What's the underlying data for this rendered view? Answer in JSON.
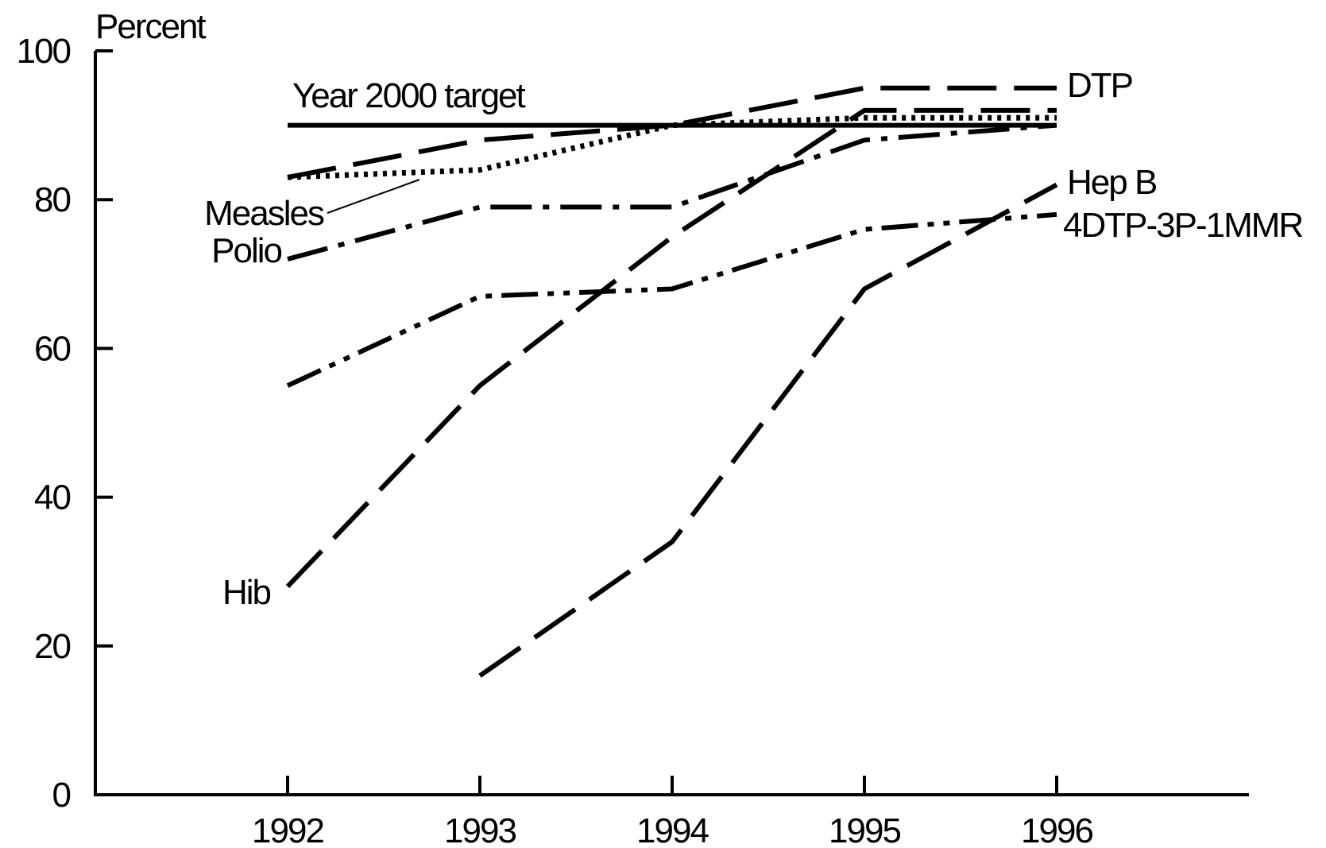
{
  "chart_data": {
    "type": "line",
    "ylabel": "Percent",
    "ylim": [
      0,
      100
    ],
    "yticks": [
      0,
      20,
      40,
      60,
      80,
      100
    ],
    "x": [
      "1992",
      "1993",
      "1994",
      "1995",
      "1996"
    ],
    "grid": false,
    "target": {
      "label": "Year 2000 target",
      "value": 90,
      "color": "#000000"
    },
    "series": [
      {
        "name": "DTP",
        "values": [
          83,
          88,
          90,
          95,
          95
        ],
        "dash": "long-dash",
        "color": "#000000"
      },
      {
        "name": "Measles",
        "values": [
          83,
          84,
          90,
          91,
          91
        ],
        "dash": "dotted",
        "color": "#000000"
      },
      {
        "name": "Polio",
        "values": [
          72,
          79,
          79,
          88,
          90
        ],
        "dash": "dash-dot",
        "color": "#000000"
      },
      {
        "name": "Hib",
        "values": [
          28,
          55,
          75,
          92,
          92
        ],
        "dash": "long-dash",
        "color": "#000000"
      },
      {
        "name": "4DTP-3P-1MMR",
        "values": [
          55,
          67,
          68,
          76,
          78
        ],
        "dash": "dash-dot-dot",
        "color": "#000000"
      },
      {
        "name": "Hep B",
        "values": [
          null,
          16,
          34,
          68,
          82
        ],
        "dash": "long-dash",
        "color": "#000000"
      }
    ]
  }
}
